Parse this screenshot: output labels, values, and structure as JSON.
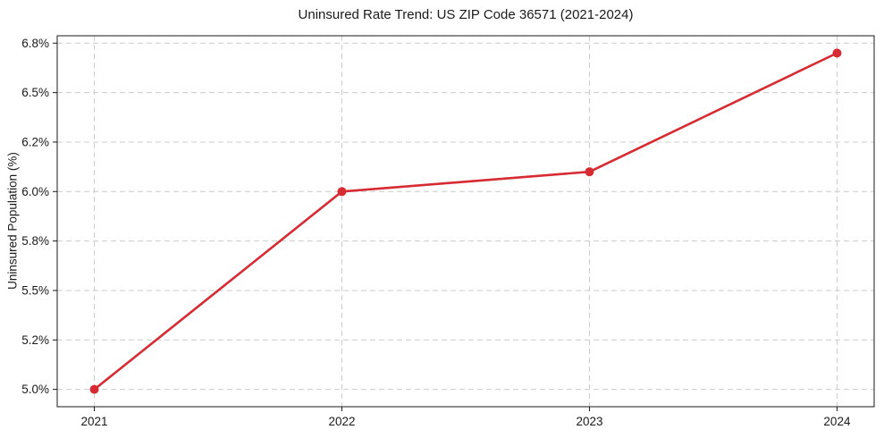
{
  "figure": {
    "title": "Uninsured Rate Trend: US ZIP Code 36571 (2021-2024)",
    "ylabel": "Uninsured Population (%)",
    "background_color": "#ffffff"
  },
  "chart_data": {
    "type": "line",
    "title": "Uninsured Rate Trend: US ZIP Code 36571 (2021-2024)",
    "xlabel": "",
    "ylabel": "Uninsured Population (%)",
    "x": [
      2021,
      2022,
      2023,
      2024
    ],
    "x_tick_labels": [
      "2021",
      "2022",
      "2023",
      "2024"
    ],
    "series": [
      {
        "name": "Uninsured Population (%)",
        "values": [
          5.0,
          6.0,
          6.1,
          6.7
        ]
      }
    ],
    "y_ticks": [
      5.0,
      5.25,
      5.5,
      5.75,
      6.0,
      6.25,
      6.5,
      6.75
    ],
    "y_tick_labels": [
      "5.0%",
      "5.2%",
      "5.5%",
      "5.8%",
      "6.0%",
      "6.2%",
      "6.5%",
      "6.8%"
    ],
    "xlim": [
      2020.85,
      2024.15
    ],
    "ylim": [
      4.9125,
      6.7875
    ],
    "grid": true,
    "legend_position": "none",
    "line_color": "#d62b32",
    "marker": "circle",
    "marker_radius": 5,
    "grid_color": "#cccccc",
    "frame_color": "#1a1a1a",
    "text_color": "#1a1a1a"
  }
}
